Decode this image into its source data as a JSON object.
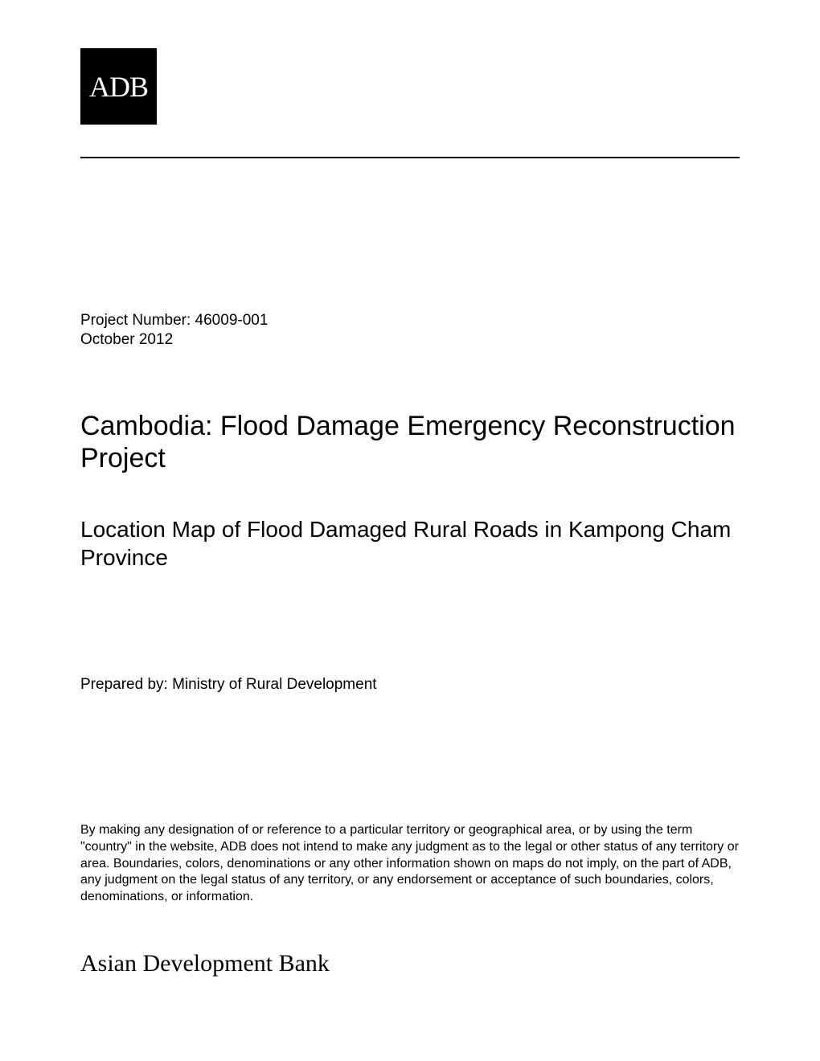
{
  "logo": {
    "text": "ADB",
    "background_color": "#000000",
    "text_color": "#ffffff"
  },
  "meta": {
    "project_number_label": "Project Number: 46009-001",
    "date": "October 2012"
  },
  "title": "Cambodia: Flood Damage Emergency Reconstruction Project",
  "subtitle": "Location Map of Flood Damaged Rural Roads in Kampong Cham Province",
  "prepared_by": "Prepared by: Ministry of Rural Development",
  "disclaimer": "By making any designation of or reference to a particular territory or geographical area, or by using the term \"country\" in the website, ADB does not intend to make any judgment as to the legal or other status of any territory or area. Boundaries, colors, denominations or any other information shown on maps do not imply, on the part of ADB, any judgment on the legal status of any territory, or any endorsement or acceptance of such boundaries, colors, denominations, or information.",
  "footer_org": "Asian Development Bank",
  "styles": {
    "background_color": "#ffffff",
    "text_color": "#000000",
    "title_fontsize": 34,
    "subtitle_fontsize": 28,
    "body_fontsize": 19,
    "disclaimer_fontsize": 16,
    "footer_fontsize": 30,
    "divider_color": "#000000"
  }
}
